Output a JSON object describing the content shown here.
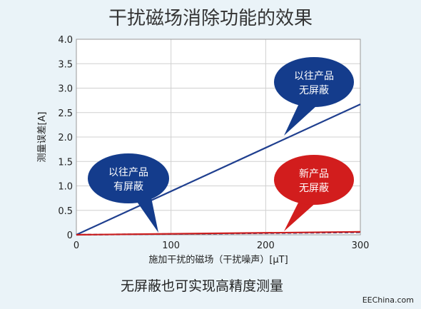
{
  "title": "干扰磁场消除功能的效果",
  "caption": "无屏蔽也可实现高精度测量",
  "credit": "EEChina.com",
  "colors": {
    "background": "#eaf3f8",
    "plot_bg": "#ffffff",
    "grid": "#d0d0d0",
    "legacy_line": "#1f3f8f",
    "new_line": "#cc1f1f",
    "legacy_bubble": "#143c8c",
    "new_bubble": "#d21d1d"
  },
  "chart_data": {
    "type": "line",
    "title": "干扰磁场消除功能的效果",
    "xlabel": "施加干扰的磁场（干扰噪声）[μT]",
    "ylabel": "测量误差[A]",
    "xlim": [
      0,
      300
    ],
    "ylim": [
      0,
      4.0
    ],
    "x_ticks": [
      0,
      100,
      200,
      300
    ],
    "x_tick_labels": [
      "0",
      "100",
      "200",
      "300"
    ],
    "y_ticks": [
      0,
      0.5,
      1.0,
      1.5,
      2.0,
      2.5,
      3.0,
      3.5,
      4.0
    ],
    "y_tick_labels": [
      "0",
      "0.5",
      "1.0",
      "1.5",
      "2.0",
      "2.5",
      "3.0",
      "3.5",
      "4.0"
    ],
    "grid": true,
    "series": [
      {
        "label_lines": [
          "以往产品",
          "无屏蔽"
        ],
        "color": "#1f3f8f",
        "style": "solid",
        "x": [
          0,
          300
        ],
        "y": [
          0,
          2.67
        ]
      },
      {
        "label_lines": [
          "以往产品",
          "有屏蔽"
        ],
        "color": "#1f3f8f",
        "style": "dashed",
        "x": [
          0,
          300
        ],
        "y": [
          0,
          0.05
        ]
      },
      {
        "label_lines": [
          "新产品",
          "无屏蔽"
        ],
        "color": "#cc1f1f",
        "style": "solid",
        "x": [
          0,
          300
        ],
        "y": [
          0,
          0.06
        ]
      }
    ]
  }
}
